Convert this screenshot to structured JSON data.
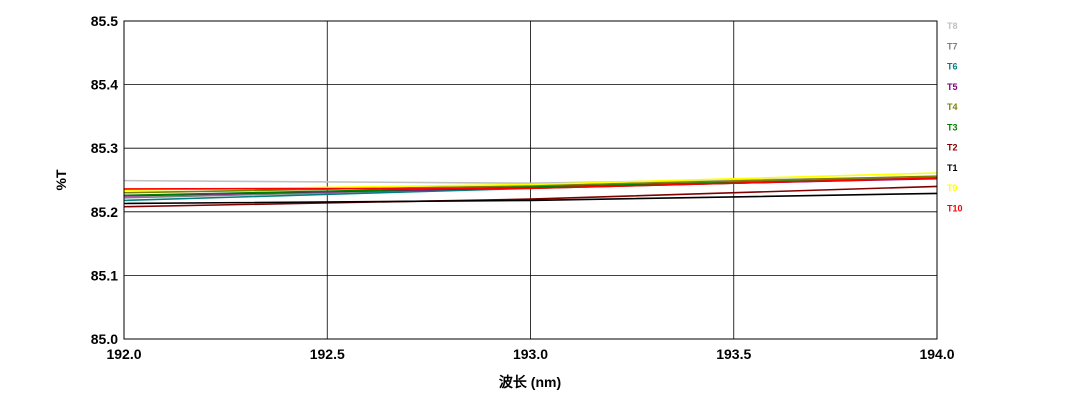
{
  "chart_data": {
    "type": "line",
    "xlabel": "波长 (nm)",
    "ylabel": "%T",
    "xlim": [
      192.0,
      194.0
    ],
    "ylim": [
      85.0,
      85.5
    ],
    "x_ticks": [
      "192.0",
      "192.5",
      "193.0",
      "193.5",
      "194.0"
    ],
    "y_ticks": [
      "85.0",
      "85.1",
      "85.2",
      "85.3",
      "85.4",
      "85.5"
    ],
    "grid": true,
    "legend_position": "right",
    "series": [
      {
        "name": "T8",
        "color": "#c0c0c0",
        "x": [
          192.0,
          193.0,
          194.0
        ],
        "y": [
          85.249,
          85.245,
          85.255
        ]
      },
      {
        "name": "T7",
        "color": "#808080",
        "x": [
          192.0,
          193.0,
          194.0
        ],
        "y": [
          85.222,
          85.238,
          85.254
        ]
      },
      {
        "name": "T6",
        "color": "#008080",
        "x": [
          192.0,
          193.0,
          194.0
        ],
        "y": [
          85.218,
          85.237,
          85.253
        ]
      },
      {
        "name": "T5",
        "color": "#800080",
        "x": [
          192.0,
          193.0,
          194.0
        ],
        "y": [
          85.225,
          85.238,
          85.252
        ]
      },
      {
        "name": "T4",
        "color": "#808000",
        "x": [
          192.0,
          193.0,
          194.0
        ],
        "y": [
          85.23,
          85.241,
          85.256
        ]
      },
      {
        "name": "T3",
        "color": "#008000",
        "x": [
          192.0,
          193.0,
          194.0
        ],
        "y": [
          85.226,
          85.239,
          85.253
        ]
      },
      {
        "name": "T2",
        "color": "#800000",
        "x": [
          192.0,
          193.0,
          194.0
        ],
        "y": [
          85.208,
          85.22,
          85.24
        ]
      },
      {
        "name": "T1",
        "color": "#000000",
        "x": [
          192.0,
          193.0,
          194.0
        ],
        "y": [
          85.213,
          85.218,
          85.229
        ]
      },
      {
        "name": "T9",
        "color": "#ffff00",
        "x": [
          192.0,
          193.0,
          194.0
        ],
        "y": [
          85.234,
          85.243,
          85.261
        ]
      },
      {
        "name": "T10",
        "color": "#ff0000",
        "x": [
          192.0,
          193.0,
          194.0
        ],
        "y": [
          85.236,
          85.237,
          85.253
        ]
      }
    ]
  }
}
